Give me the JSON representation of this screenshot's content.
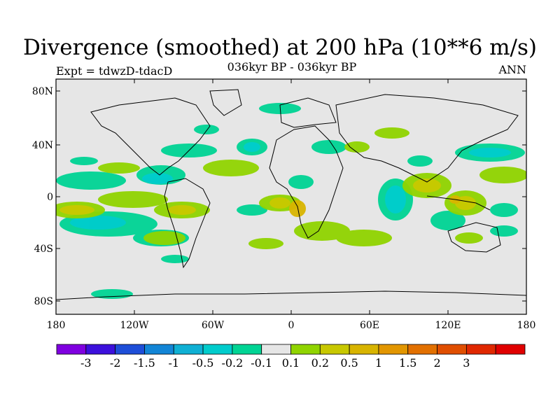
{
  "title": "Divergence (smoothed) at 200 hPa (10**6 m/s)",
  "subtitle": "036kyr BP - 036kyr BP",
  "left_label": "Expt = tdwzD-tdacD",
  "right_label": "ANN",
  "lat_ticks": [
    "80N",
    "40N",
    "0",
    "40S",
    "80S"
  ],
  "lon_ticks": [
    "180",
    "120W",
    "60W",
    "0",
    "60E",
    "120E",
    "180"
  ],
  "colorbar": {
    "colors": [
      "#7f00e0",
      "#3c10dc",
      "#1e4ed8",
      "#1285d6",
      "#0fb0d4",
      "#00cccc",
      "#00d494",
      "#e6e6e6",
      "#90d400",
      "#c8c800",
      "#d8b400",
      "#e29600",
      "#e27000",
      "#e04e00",
      "#e02800",
      "#e00000"
    ],
    "labels": [
      "-3",
      "-2",
      "-1.5",
      "-1",
      "-0.5",
      "-0.2",
      "-0.1",
      "0.1",
      "0.2",
      "0.5",
      "1",
      "1.5",
      "2",
      "3"
    ]
  },
  "map_background": "#e6e6e6"
}
